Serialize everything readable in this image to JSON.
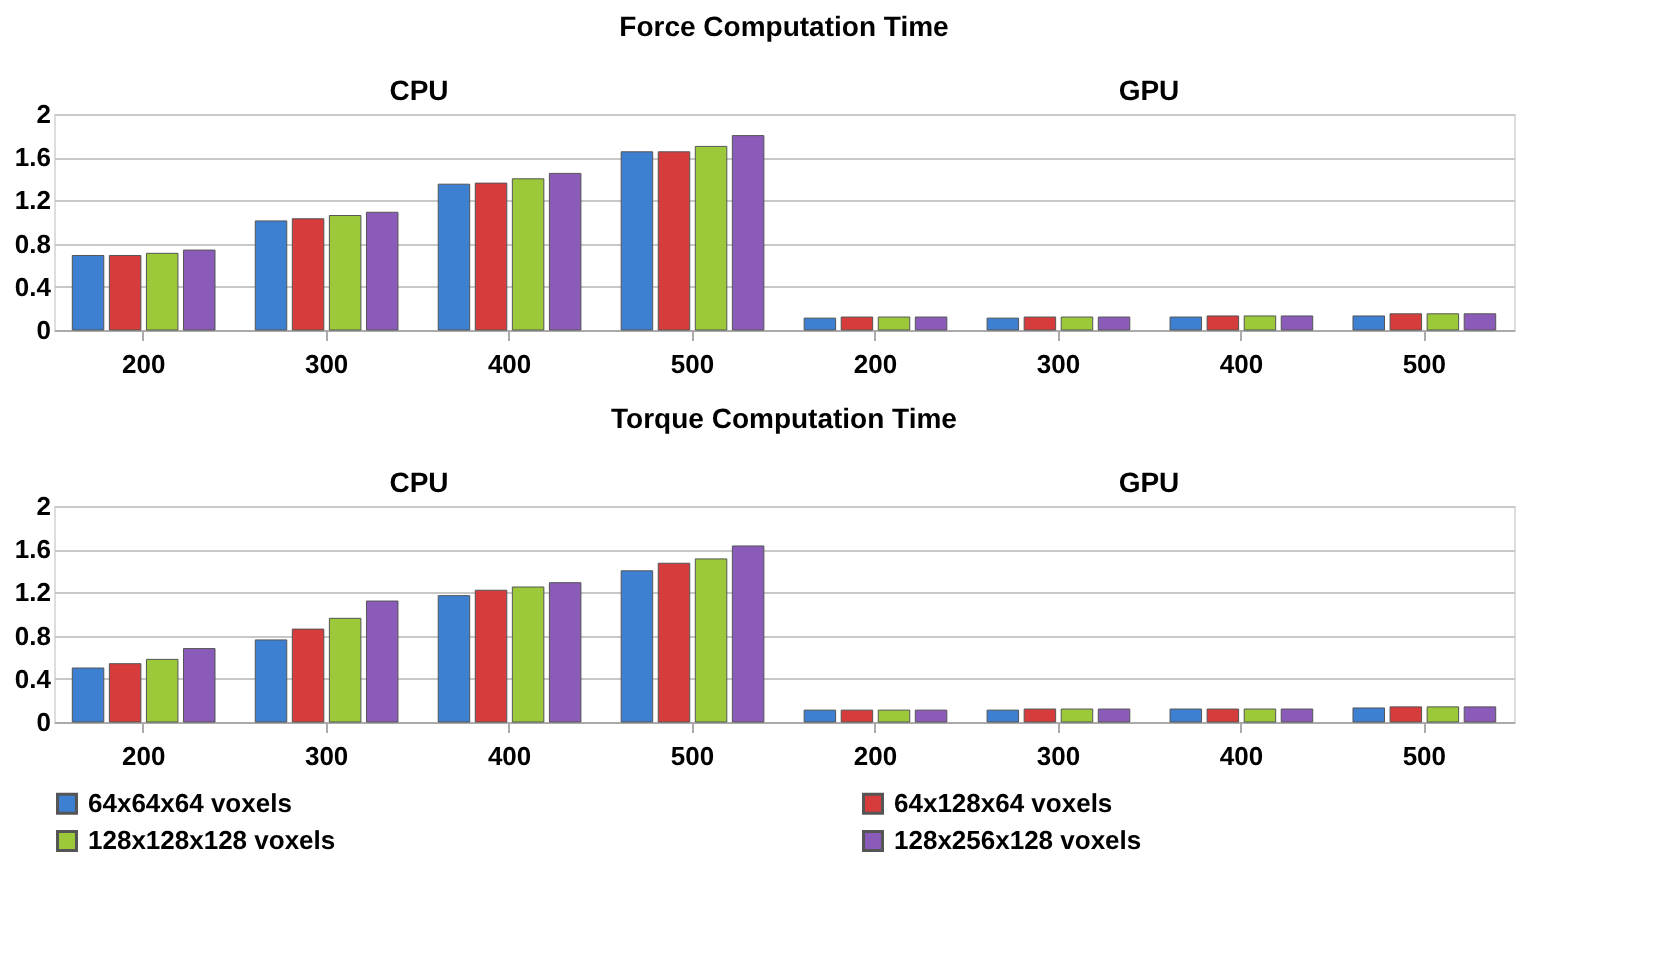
{
  "chart_data": [
    {
      "type": "bar",
      "title": "Force Computation Time",
      "annotations": [
        "CPU",
        "GPU"
      ],
      "categories": [
        "200",
        "300",
        "400",
        "500",
        "200",
        "300",
        "400",
        "500"
      ],
      "series": [
        {
          "color": "#3d7fd0",
          "values": [
            0.69,
            1.01,
            1.35,
            1.65,
            0.11,
            0.11,
            0.12,
            0.13
          ]
        },
        {
          "color": "#d63c3c",
          "values": [
            0.69,
            1.03,
            1.36,
            1.65,
            0.12,
            0.12,
            0.13,
            0.15
          ]
        },
        {
          "color": "#9bc93a",
          "values": [
            0.71,
            1.06,
            1.4,
            1.7,
            0.12,
            0.12,
            0.13,
            0.15
          ]
        },
        {
          "color": "#8a5bb8",
          "values": [
            0.74,
            1.09,
            1.45,
            1.8,
            0.12,
            0.12,
            0.13,
            0.15
          ]
        }
      ],
      "ylim": [
        0,
        2
      ],
      "yticks": [
        0,
        0.4,
        0.8,
        1.2,
        1.6,
        2
      ],
      "grid": "y",
      "legend": false
    },
    {
      "type": "bar",
      "title": "Torque Computation Time",
      "annotations": [
        "CPU",
        "GPU"
      ],
      "categories": [
        "200",
        "300",
        "400",
        "500",
        "200",
        "300",
        "400",
        "500"
      ],
      "series": [
        {
          "name": "64x64x64 voxels",
          "color": "#3d7fd0",
          "values": [
            0.5,
            0.76,
            1.17,
            1.4,
            0.11,
            0.11,
            0.12,
            0.13
          ]
        },
        {
          "name": "64x128x64 voxels",
          "color": "#d63c3c",
          "values": [
            0.54,
            0.86,
            1.22,
            1.47,
            0.11,
            0.12,
            0.12,
            0.14
          ]
        },
        {
          "name": "128x128x128 voxels",
          "color": "#9bc93a",
          "values": [
            0.58,
            0.96,
            1.25,
            1.51,
            0.11,
            0.12,
            0.12,
            0.14
          ]
        },
        {
          "name": "128x256x128 voxels",
          "color": "#8a5bb8",
          "values": [
            0.68,
            1.12,
            1.29,
            1.63,
            0.11,
            0.12,
            0.12,
            0.14
          ]
        }
      ],
      "ylim": [
        0,
        2
      ],
      "yticks": [
        0,
        0.4,
        0.8,
        1.2,
        1.6,
        2
      ],
      "grid": "y",
      "legend": "bottom"
    }
  ]
}
